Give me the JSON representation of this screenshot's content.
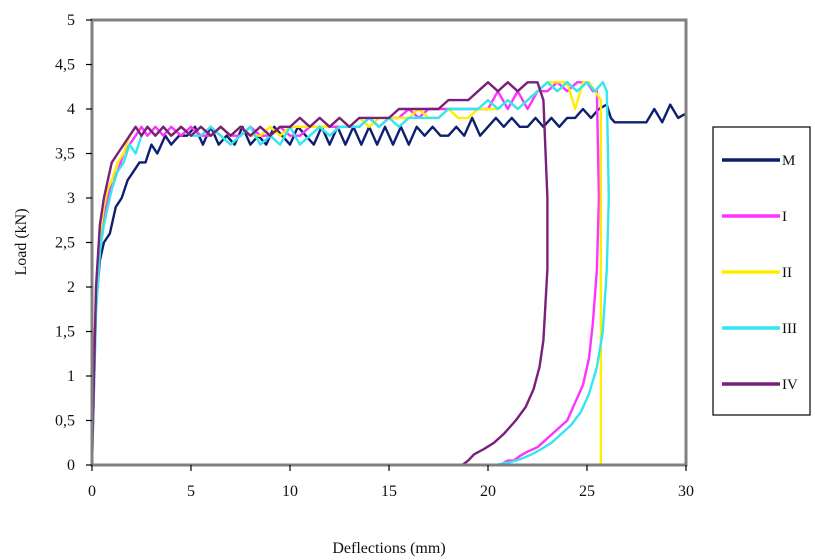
{
  "chart_data": {
    "type": "line",
    "title": "",
    "xlabel": "Deflections (mm)",
    "ylabel": "Load (kN)",
    "xlim": [
      0,
      30
    ],
    "ylim": [
      0,
      5
    ],
    "x_ticks": [
      0,
      5,
      10,
      15,
      20,
      25,
      30
    ],
    "y_ticks": [
      0,
      0.5,
      1,
      1.5,
      2,
      2.5,
      3,
      3.5,
      4,
      4.5,
      5
    ],
    "x_tick_labels": [
      "0",
      "5",
      "10",
      "15",
      "20",
      "25",
      "30"
    ],
    "y_tick_labels": [
      "0",
      "0,5",
      "1",
      "1,5",
      "2",
      "2,5",
      "3",
      "3,5",
      "4",
      "4,5",
      "5"
    ],
    "grid": false,
    "legend_position": "right",
    "plot_background": "#ffffff",
    "frame_color": "#808080",
    "series": [
      {
        "name": "M",
        "color": "#0d1f6e",
        "x": [
          0,
          0.1,
          0.2,
          0.4,
          0.6,
          0.9,
          1.2,
          1.5,
          1.8,
          2.1,
          2.4,
          2.7,
          3.0,
          3.3,
          3.7,
          4.0,
          4.4,
          4.8,
          5.2,
          5.6,
          6.0,
          6.4,
          6.8,
          7.2,
          7.6,
          8.0,
          8.4,
          8.8,
          9.2,
          9.6,
          10.0,
          10.4,
          10.8,
          11.2,
          11.6,
          12.0,
          12.4,
          12.8,
          13.2,
          13.6,
          14.0,
          14.4,
          14.8,
          15.2,
          15.6,
          16.0,
          16.4,
          16.8,
          17.2,
          17.6,
          18.0,
          18.4,
          18.8,
          19.2,
          19.6,
          20.0,
          20.4,
          20.8,
          21.2,
          21.6,
          22.0,
          22.4,
          22.8,
          23.2,
          23.6,
          24.0,
          24.4,
          24.8,
          25.2,
          25.6,
          26.0,
          26.2,
          26.4,
          26.8,
          27.2,
          27.6,
          28.0,
          28.4,
          28.8,
          29.2,
          29.6,
          30.0
        ],
        "y": [
          0,
          1.2,
          1.8,
          2.3,
          2.5,
          2.6,
          2.9,
          3.0,
          3.2,
          3.3,
          3.4,
          3.4,
          3.6,
          3.5,
          3.7,
          3.6,
          3.7,
          3.7,
          3.8,
          3.6,
          3.8,
          3.6,
          3.7,
          3.6,
          3.8,
          3.6,
          3.7,
          3.6,
          3.8,
          3.7,
          3.6,
          3.8,
          3.7,
          3.6,
          3.8,
          3.6,
          3.8,
          3.6,
          3.8,
          3.6,
          3.8,
          3.6,
          3.8,
          3.6,
          3.8,
          3.6,
          3.8,
          3.7,
          3.8,
          3.7,
          3.7,
          3.8,
          3.7,
          3.9,
          3.7,
          3.8,
          3.9,
          3.8,
          3.9,
          3.8,
          3.8,
          3.9,
          3.8,
          3.9,
          3.8,
          3.9,
          3.9,
          4.0,
          3.9,
          4.0,
          4.05,
          3.9,
          3.85,
          3.85,
          3.85,
          3.85,
          3.85,
          4.0,
          3.85,
          4.05,
          3.9,
          3.95
        ]
      },
      {
        "name": "I",
        "color": "#ff33ff",
        "x": [
          0,
          0.2,
          0.4,
          0.6,
          0.8,
          1.0,
          1.3,
          1.6,
          1.9,
          2.2,
          2.5,
          2.8,
          3.2,
          3.6,
          4.0,
          4.5,
          5.0,
          5.5,
          6.0,
          6.5,
          7.0,
          7.5,
          8.0,
          8.5,
          9.0,
          9.5,
          10.0,
          10.5,
          11.0,
          11.5,
          12.0,
          12.5,
          13.0,
          13.5,
          14.0,
          14.5,
          15.0,
          15.5,
          16.0,
          16.5,
          17.0,
          17.5,
          18.0,
          18.5,
          19.0,
          19.5,
          20.0,
          20.5,
          21.0,
          21.5,
          22.0,
          22.5,
          23.0,
          23.5,
          24.0,
          24.5,
          25.0,
          25.3,
          25.5,
          25.6,
          25.5,
          25.3,
          25.1,
          24.8,
          24.4,
          24.0,
          23.5,
          23.0,
          22.5,
          22.0,
          21.6,
          21.3,
          21.0,
          20.6,
          20.2,
          19.6,
          19.0
        ],
        "y": [
          0,
          1.8,
          2.5,
          2.8,
          3.0,
          3.2,
          3.3,
          3.5,
          3.6,
          3.7,
          3.8,
          3.7,
          3.8,
          3.7,
          3.8,
          3.7,
          3.8,
          3.7,
          3.7,
          3.8,
          3.7,
          3.7,
          3.8,
          3.7,
          3.7,
          3.8,
          3.7,
          3.7,
          3.8,
          3.8,
          3.8,
          3.8,
          3.8,
          3.8,
          3.9,
          3.8,
          3.9,
          3.9,
          4.0,
          3.9,
          4.0,
          4.0,
          4.0,
          4.0,
          4.0,
          4.0,
          4.0,
          4.2,
          4.0,
          4.2,
          4.0,
          4.2,
          4.2,
          4.3,
          4.2,
          4.3,
          4.3,
          4.2,
          4.2,
          3.0,
          2.2,
          1.6,
          1.2,
          0.9,
          0.7,
          0.5,
          0.4,
          0.3,
          0.2,
          0.15,
          0.1,
          0.05,
          0.05,
          0,
          0,
          0,
          0
        ]
      },
      {
        "name": "II",
        "color": "#ffee00",
        "x": [
          0,
          0.2,
          0.4,
          0.6,
          0.8,
          1.0,
          1.3,
          1.6,
          1.9,
          2.2,
          2.5,
          2.8,
          3.2,
          3.6,
          4.0,
          4.5,
          5.0,
          5.5,
          6.0,
          6.5,
          7.0,
          7.5,
          8.0,
          8.5,
          9.0,
          9.5,
          10.0,
          10.5,
          11.0,
          11.5,
          12.0,
          12.5,
          13.0,
          13.5,
          14.0,
          14.5,
          15.0,
          15.5,
          16.0,
          16.5,
          17.0,
          17.5,
          18.0,
          18.5,
          19.0,
          19.5,
          20.0,
          20.5,
          21.0,
          21.5,
          22.0,
          22.5,
          23.0,
          23.5,
          24.0,
          24.4,
          24.8,
          25.1,
          25.4,
          25.7,
          25.7
        ],
        "y": [
          0,
          1.9,
          2.6,
          2.9,
          3.1,
          3.2,
          3.4,
          3.5,
          3.7,
          3.8,
          3.7,
          3.8,
          3.7,
          3.8,
          3.7,
          3.8,
          3.7,
          3.8,
          3.7,
          3.8,
          3.7,
          3.8,
          3.7,
          3.7,
          3.8,
          3.7,
          3.8,
          3.8,
          3.8,
          3.8,
          3.8,
          3.9,
          3.8,
          3.9,
          3.8,
          3.9,
          3.9,
          3.9,
          3.9,
          4.0,
          3.9,
          3.9,
          4.0,
          3.9,
          3.9,
          4.0,
          4.0,
          4.0,
          4.1,
          4.0,
          4.1,
          4.2,
          4.3,
          4.3,
          4.3,
          4.0,
          4.3,
          4.3,
          4.2,
          4.1,
          0
        ]
      },
      {
        "name": "III",
        "color": "#33e6f2",
        "x": [
          0,
          0.2,
          0.4,
          0.6,
          0.8,
          1.0,
          1.3,
          1.6,
          1.9,
          2.2,
          2.5,
          2.8,
          3.2,
          3.6,
          4.0,
          4.5,
          5.0,
          5.5,
          6.0,
          6.5,
          7.0,
          7.5,
          8.0,
          8.5,
          9.0,
          9.5,
          10.0,
          10.5,
          11.0,
          11.5,
          12.0,
          12.5,
          13.0,
          13.5,
          14.0,
          14.5,
          15.0,
          15.5,
          16.0,
          16.5,
          17.0,
          17.5,
          18.0,
          18.5,
          19.0,
          19.5,
          20.0,
          20.5,
          21.0,
          21.5,
          22.0,
          22.5,
          23.0,
          23.5,
          24.0,
          24.5,
          25.0,
          25.4,
          25.8,
          26.0,
          26.1,
          26.0,
          25.8,
          25.5,
          25.1,
          24.7,
          24.2,
          23.7,
          23.2,
          22.7,
          22.2,
          21.8,
          21.4,
          21.1,
          20.8,
          20.4,
          20.0,
          19.4,
          18.8
        ],
        "y": [
          0,
          1.7,
          2.4,
          2.7,
          2.9,
          3.1,
          3.3,
          3.4,
          3.6,
          3.5,
          3.7,
          3.8,
          3.7,
          3.8,
          3.7,
          3.8,
          3.7,
          3.7,
          3.8,
          3.7,
          3.6,
          3.7,
          3.8,
          3.6,
          3.7,
          3.6,
          3.8,
          3.6,
          3.7,
          3.8,
          3.7,
          3.8,
          3.8,
          3.8,
          3.9,
          3.8,
          3.9,
          3.8,
          3.9,
          3.9,
          3.9,
          3.9,
          4.0,
          4.0,
          4.0,
          4.0,
          4.1,
          4.0,
          4.1,
          4.0,
          4.1,
          4.2,
          4.3,
          4.2,
          4.3,
          4.2,
          4.3,
          4.2,
          4.3,
          4.2,
          3.0,
          2.2,
          1.5,
          1.1,
          0.8,
          0.6,
          0.45,
          0.35,
          0.25,
          0.18,
          0.12,
          0.08,
          0.05,
          0.03,
          0.02,
          0,
          0,
          0,
          0
        ]
      },
      {
        "name": "IV",
        "color": "#7a1f7a",
        "x": [
          0,
          0.2,
          0.4,
          0.6,
          0.8,
          1.0,
          1.3,
          1.6,
          1.9,
          2.2,
          2.5,
          2.8,
          3.2,
          3.6,
          4.0,
          4.5,
          5.0,
          5.5,
          6.0,
          6.5,
          7.0,
          7.5,
          8.0,
          8.5,
          9.0,
          9.5,
          10.0,
          10.5,
          11.0,
          11.5,
          12.0,
          12.5,
          13.0,
          13.5,
          14.0,
          14.5,
          15.0,
          15.5,
          16.0,
          16.5,
          17.0,
          17.5,
          18.0,
          18.5,
          19.0,
          19.5,
          20.0,
          20.5,
          21.0,
          21.5,
          22.0,
          22.5,
          22.8,
          23.0,
          23.0,
          22.9,
          22.8,
          22.6,
          22.3,
          21.9,
          21.4,
          20.8,
          20.3,
          19.8,
          19.3,
          19.0,
          18.7,
          18.0,
          17.0
        ],
        "y": [
          0,
          2.0,
          2.7,
          3.0,
          3.2,
          3.4,
          3.5,
          3.6,
          3.7,
          3.8,
          3.7,
          3.8,
          3.7,
          3.8,
          3.7,
          3.8,
          3.7,
          3.8,
          3.7,
          3.8,
          3.7,
          3.8,
          3.7,
          3.8,
          3.7,
          3.8,
          3.8,
          3.9,
          3.8,
          3.9,
          3.8,
          3.9,
          3.8,
          3.9,
          3.9,
          3.9,
          3.9,
          4.0,
          4.0,
          4.0,
          4.0,
          4.0,
          4.1,
          4.1,
          4.1,
          4.2,
          4.3,
          4.2,
          4.3,
          4.2,
          4.3,
          4.3,
          4.1,
          3.0,
          2.2,
          1.8,
          1.4,
          1.1,
          0.85,
          0.65,
          0.5,
          0.35,
          0.25,
          0.18,
          0.12,
          0.05,
          0,
          0,
          0
        ]
      }
    ]
  }
}
